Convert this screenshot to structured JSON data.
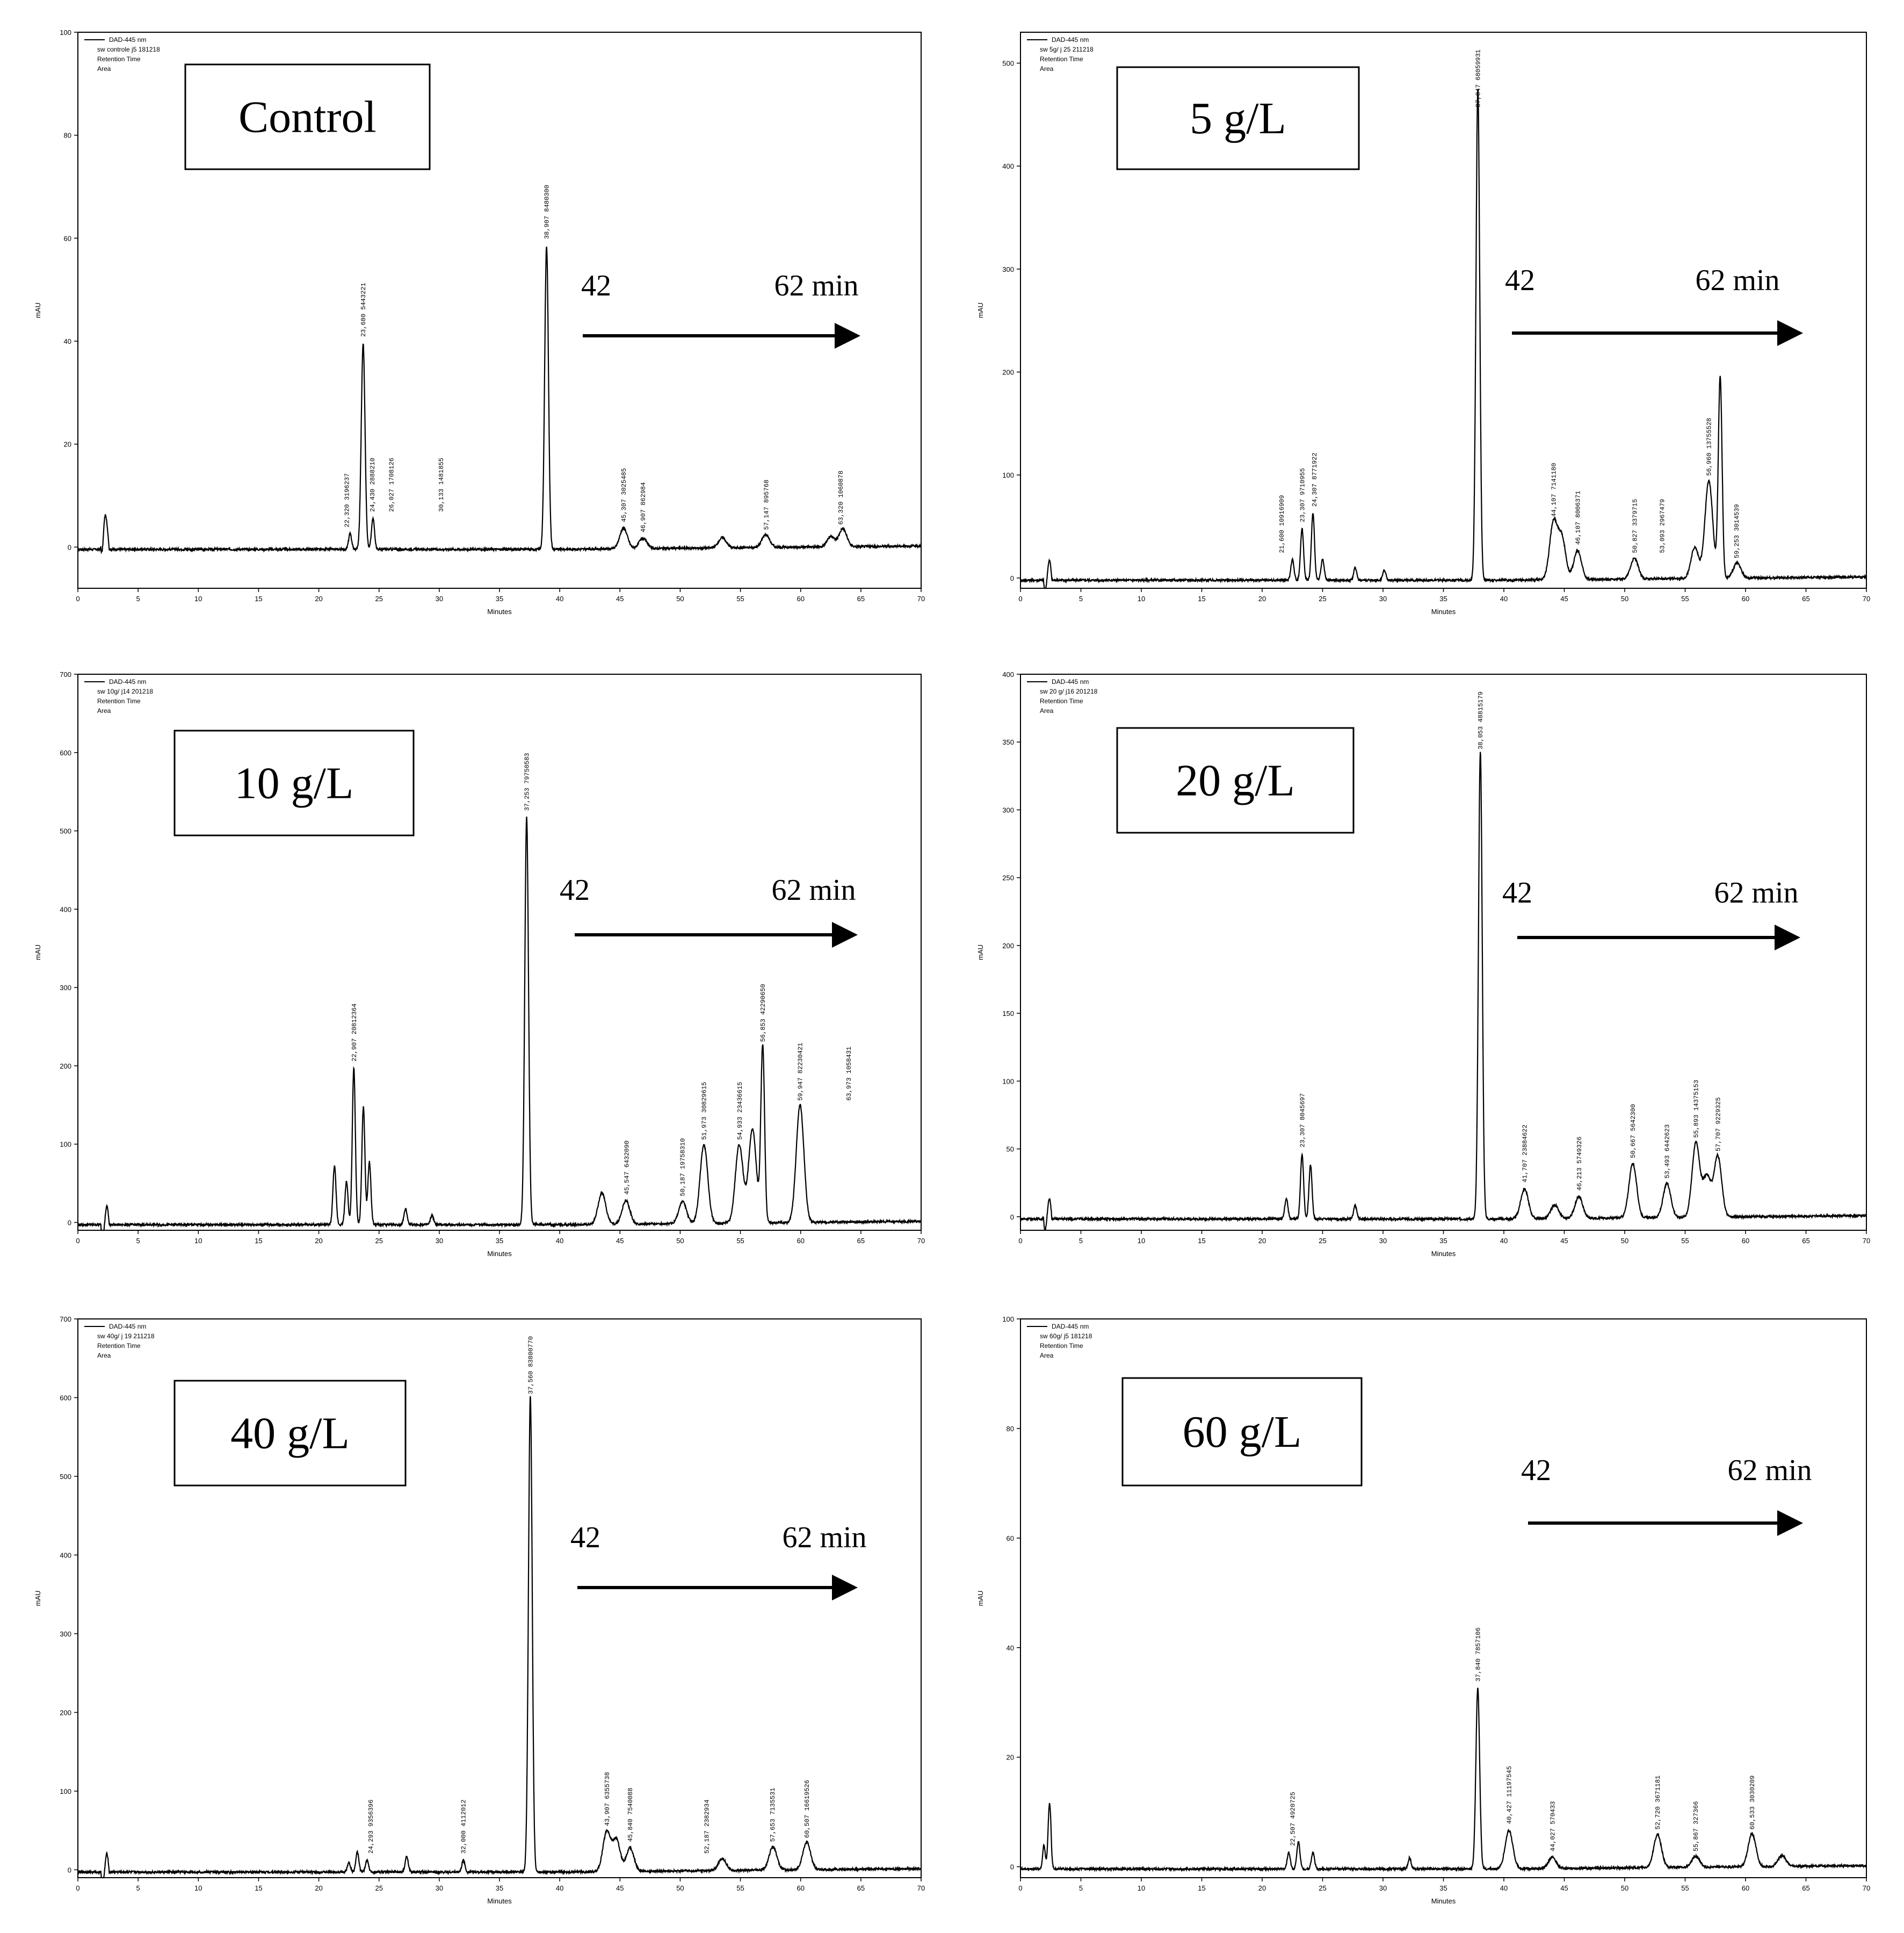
{
  "chart_data": [
    {
      "type": "line",
      "title": "Control",
      "legend": [
        "DAD-445 nm",
        "sw controle j5 181218",
        "Retention Time",
        "Area"
      ],
      "xlabel": "Minutes",
      "ylabel": "mAU",
      "xlim": [
        0,
        70
      ],
      "ylim": [
        -8,
        100
      ],
      "xticks": [
        0,
        5,
        10,
        15,
        20,
        25,
        30,
        35,
        40,
        45,
        50,
        55,
        60,
        65,
        70
      ],
      "yticks": [
        0,
        20,
        40,
        60,
        80,
        100
      ],
      "annotation": {
        "start": "42",
        "end": "62 min"
      },
      "peaks": [
        {
          "x": 2.2,
          "y": 7
        },
        {
          "x": 23.68,
          "y": 40
        },
        {
          "x": 22.6,
          "y": 3
        },
        {
          "x": 24.5,
          "y": 6
        },
        {
          "x": 38.907,
          "y": 59
        },
        {
          "x": 45.3,
          "y": 4
        },
        {
          "x": 46.9,
          "y": 2
        },
        {
          "x": 53.5,
          "y": 2
        },
        {
          "x": 57.1,
          "y": 2.5
        },
        {
          "x": 62.5,
          "y": 2
        },
        {
          "x": 63.5,
          "y": 3.5
        }
      ],
      "peak_labels": [
        {
          "x": 23.68,
          "text": "23,680 5443221"
        },
        {
          "x": 24.43,
          "text": "24,430 2888210"
        },
        {
          "x": 22.32,
          "text": "22,320 3196237"
        },
        {
          "x": 38.907,
          "text": "38,907 8480300"
        },
        {
          "x": 26.027,
          "text": "26,027 1708126"
        },
        {
          "x": 30.133,
          "text": "30,133 1481855"
        },
        {
          "x": 45.307,
          "text": "45,307 3025485"
        },
        {
          "x": 57.147,
          "text": "57,147 895768"
        },
        {
          "x": 63.32,
          "text": "63,320 1060878"
        },
        {
          "x": 46.907,
          "text": "46,907 862984"
        }
      ]
    },
    {
      "type": "line",
      "title": "5 g/L",
      "legend": [
        "DAD-445 nm",
        "sw 5g/ j 25 211218",
        "Retention Time",
        "Area"
      ],
      "xlabel": "Minutes",
      "ylabel": "mAU",
      "xlim": [
        0,
        70
      ],
      "ylim": [
        -10,
        530
      ],
      "xticks": [
        0,
        5,
        10,
        15,
        20,
        25,
        30,
        35,
        40,
        45,
        50,
        55,
        60,
        65,
        70
      ],
      "yticks": [
        0,
        100,
        200,
        300,
        400,
        500
      ],
      "annotation": {
        "start": "42",
        "end": "62 min"
      },
      "peaks": [
        {
          "x": 2.2,
          "y": 10
        },
        {
          "x": 22.5,
          "y": 20
        },
        {
          "x": 23.3,
          "y": 50
        },
        {
          "x": 24.2,
          "y": 65
        },
        {
          "x": 25.0,
          "y": 20
        },
        {
          "x": 27.7,
          "y": 12
        },
        {
          "x": 30.1,
          "y": 10
        },
        {
          "x": 37.847,
          "y": 478
        },
        {
          "x": 44.1,
          "y": 55
        },
        {
          "x": 44.8,
          "y": 40
        },
        {
          "x": 46.1,
          "y": 28
        },
        {
          "x": 50.8,
          "y": 20
        },
        {
          "x": 55.8,
          "y": 30
        },
        {
          "x": 56.96,
          "y": 95
        },
        {
          "x": 57.9,
          "y": 195
        },
        {
          "x": 59.3,
          "y": 15
        }
      ],
      "peak_labels": [
        {
          "x": 21.6,
          "text": "21,600 10916909"
        },
        {
          "x": 23.307,
          "text": "23,307 9710955"
        },
        {
          "x": 24.307,
          "text": "24,307 8771922"
        },
        {
          "x": 37.847,
          "text": "37,847 68059931"
        },
        {
          "x": 44.107,
          "text": "44,107 7141180"
        },
        {
          "x": 46.107,
          "text": "46,107 8006371"
        },
        {
          "x": 50.827,
          "text": "50,827 3379715"
        },
        {
          "x": 53.093,
          "text": "53,093 2967479"
        },
        {
          "x": 56.96,
          "text": "56,960 13755528"
        },
        {
          "x": 59.253,
          "text": "59,253 3014539"
        }
      ]
    },
    {
      "type": "line",
      "title": "10 g/L",
      "legend": [
        "DAD-445 nm",
        "sw 10g/ j14 201218",
        "Retention Time",
        "Area"
      ],
      "xlabel": "Minutes",
      "ylabel": "mAU",
      "xlim": [
        0,
        70
      ],
      "ylim": [
        -10,
        700
      ],
      "xticks": [
        0,
        5,
        10,
        15,
        20,
        25,
        30,
        35,
        40,
        45,
        50,
        55,
        60,
        65,
        70
      ],
      "yticks": [
        0,
        100,
        200,
        300,
        400,
        500,
        600,
        700
      ],
      "annotation": {
        "start": "42",
        "end": "62 min"
      },
      "peaks": [
        {
          "x": 2.2,
          "y": 8
        },
        {
          "x": 21.3,
          "y": 75
        },
        {
          "x": 22.3,
          "y": 55
        },
        {
          "x": 22.907,
          "y": 200
        },
        {
          "x": 23.7,
          "y": 150
        },
        {
          "x": 24.2,
          "y": 80
        },
        {
          "x": 27.2,
          "y": 20
        },
        {
          "x": 29.4,
          "y": 12
        },
        {
          "x": 37.253,
          "y": 520
        },
        {
          "x": 43.5,
          "y": 40
        },
        {
          "x": 45.5,
          "y": 30
        },
        {
          "x": 50.2,
          "y": 28
        },
        {
          "x": 51.97,
          "y": 100
        },
        {
          "x": 54.9,
          "y": 100
        },
        {
          "x": 56.0,
          "y": 120
        },
        {
          "x": 56.85,
          "y": 225
        },
        {
          "x": 59.95,
          "y": 150
        }
      ],
      "peak_labels": [
        {
          "x": 22.907,
          "text": "22,907 20812364"
        },
        {
          "x": 37.253,
          "text": "37,253 79750583"
        },
        {
          "x": 51.973,
          "text": "51,973 30829615"
        },
        {
          "x": 54.933,
          "text": "54,933 23436615"
        },
        {
          "x": 56.853,
          "text": "56,853 42290650"
        },
        {
          "x": 59.947,
          "text": "59,947 82230421"
        },
        {
          "x": 50.187,
          "text": "50,187 19758310"
        },
        {
          "x": 45.547,
          "text": "45,547 6432090"
        },
        {
          "x": 63.973,
          "text": "63,973 1058431"
        }
      ]
    },
    {
      "type": "line",
      "title": "20 g/L",
      "legend": [
        "DAD-445 nm",
        "sw 20 g/ j16 201218",
        "Retention Time",
        "Area"
      ],
      "xlabel": "Minutes",
      "ylabel": "mAU",
      "xlim": [
        0,
        70
      ],
      "ylim": [
        -10,
        400
      ],
      "xticks": [
        0,
        5,
        10,
        15,
        20,
        25,
        30,
        35,
        40,
        45,
        50,
        55,
        60,
        65,
        70
      ],
      "yticks": [
        0,
        50,
        100,
        150,
        200,
        250,
        300,
        350,
        400
      ],
      "annotation": {
        "start": "42",
        "end": "62 min"
      },
      "peaks": [
        {
          "x": 2.2,
          "y": 8
        },
        {
          "x": 22.0,
          "y": 15
        },
        {
          "x": 23.3,
          "y": 48
        },
        {
          "x": 24.0,
          "y": 40
        },
        {
          "x": 27.7,
          "y": 10
        },
        {
          "x": 38.053,
          "y": 345
        },
        {
          "x": 41.707,
          "y": 22
        },
        {
          "x": 44.2,
          "y": 10
        },
        {
          "x": 46.2,
          "y": 16
        },
        {
          "x": 50.667,
          "y": 40
        },
        {
          "x": 53.5,
          "y": 25
        },
        {
          "x": 55.893,
          "y": 55
        },
        {
          "x": 56.8,
          "y": 30
        },
        {
          "x": 57.7,
          "y": 45
        }
      ],
      "peak_labels": [
        {
          "x": 38.053,
          "text": "38,053 48815179"
        },
        {
          "x": 41.707,
          "text": "41,707 23884622"
        },
        {
          "x": 50.667,
          "text": "50,667 5642300"
        },
        {
          "x": 53.493,
          "text": "53,493 6442623"
        },
        {
          "x": 55.893,
          "text": "55,893 14375153"
        },
        {
          "x": 57.707,
          "text": "57,707 9229325"
        },
        {
          "x": 23.307,
          "text": "23,307 8045697"
        },
        {
          "x": 46.213,
          "text": "46,213 5749326"
        }
      ]
    },
    {
      "type": "line",
      "title": "40 g/L",
      "legend": [
        "DAD-445 nm",
        "sw 40g/ j 19 211218",
        "Retention Time",
        "Area"
      ],
      "xlabel": "Minutes",
      "ylabel": "mAU",
      "xlim": [
        0,
        70
      ],
      "ylim": [
        -10,
        700
      ],
      "xticks": [
        0,
        5,
        10,
        15,
        20,
        25,
        30,
        35,
        40,
        45,
        50,
        55,
        60,
        65,
        70
      ],
      "yticks": [
        0,
        100,
        200,
        300,
        400,
        500,
        600,
        700
      ],
      "annotation": {
        "start": "42",
        "end": "62 min"
      },
      "peaks": [
        {
          "x": 2.2,
          "y": 8
        },
        {
          "x": 22.5,
          "y": 12
        },
        {
          "x": 23.2,
          "y": 25
        },
        {
          "x": 24.0,
          "y": 15
        },
        {
          "x": 27.3,
          "y": 20
        },
        {
          "x": 32.0,
          "y": 15
        },
        {
          "x": 37.56,
          "y": 605
        },
        {
          "x": 43.9,
          "y": 50
        },
        {
          "x": 44.7,
          "y": 40
        },
        {
          "x": 45.84,
          "y": 30
        },
        {
          "x": 53.5,
          "y": 15
        },
        {
          "x": 57.7,
          "y": 30
        },
        {
          "x": 60.5,
          "y": 35
        }
      ],
      "peak_labels": [
        {
          "x": 24.293,
          "text": "24,293 9356396"
        },
        {
          "x": 37.56,
          "text": "37,560 83800770"
        },
        {
          "x": 43.907,
          "text": "43,907 6355738"
        },
        {
          "x": 45.84,
          "text": "45,840 7540088"
        },
        {
          "x": 57.653,
          "text": "57,653 7135531"
        },
        {
          "x": 60.507,
          "text": "60,507 16619526"
        },
        {
          "x": 32.0,
          "text": "32,000 4112012"
        },
        {
          "x": 52.187,
          "text": "52,187 2382934"
        }
      ]
    },
    {
      "type": "line",
      "title": "60 g/L",
      "legend": [
        "DAD-445 nm",
        "sw 60g/ j5 181218",
        "Retention Time",
        "Area"
      ],
      "xlabel": "Minutes",
      "ylabel": "mAU",
      "xlim": [
        0,
        70
      ],
      "ylim": [
        -2,
        100
      ],
      "xticks": [
        0,
        5,
        10,
        15,
        20,
        25,
        30,
        35,
        40,
        45,
        50,
        55,
        60,
        65,
        70
      ],
      "yticks": [
        0,
        20,
        40,
        60,
        80,
        100
      ],
      "annotation": {
        "start": "42",
        "end": "62 min"
      },
      "peaks": [
        {
          "x": 2.0,
          "y": 6
        },
        {
          "x": 2.4,
          "y": 9
        },
        {
          "x": 22.2,
          "y": 3
        },
        {
          "x": 23.0,
          "y": 5
        },
        {
          "x": 24.2,
          "y": 3
        },
        {
          "x": 32.2,
          "y": 2
        },
        {
          "x": 37.84,
          "y": 33
        },
        {
          "x": 40.427,
          "y": 7
        },
        {
          "x": 44.0,
          "y": 2
        },
        {
          "x": 52.72,
          "y": 6
        },
        {
          "x": 55.867,
          "y": 2
        },
        {
          "x": 60.533,
          "y": 6
        },
        {
          "x": 63.0,
          "y": 2
        }
      ],
      "peak_labels": [
        {
          "x": 37.84,
          "text": "37,840 7857106"
        },
        {
          "x": 40.427,
          "text": "40,427 11197545"
        },
        {
          "x": 52.72,
          "text": "52,720 3671181"
        },
        {
          "x": 60.533,
          "text": "60,533 3030209"
        },
        {
          "x": 22.507,
          "text": "22,507 4920725"
        },
        {
          "x": 44.027,
          "text": "44,027 570433"
        },
        {
          "x": 55.867,
          "text": "55,867 327366"
        }
      ]
    }
  ]
}
